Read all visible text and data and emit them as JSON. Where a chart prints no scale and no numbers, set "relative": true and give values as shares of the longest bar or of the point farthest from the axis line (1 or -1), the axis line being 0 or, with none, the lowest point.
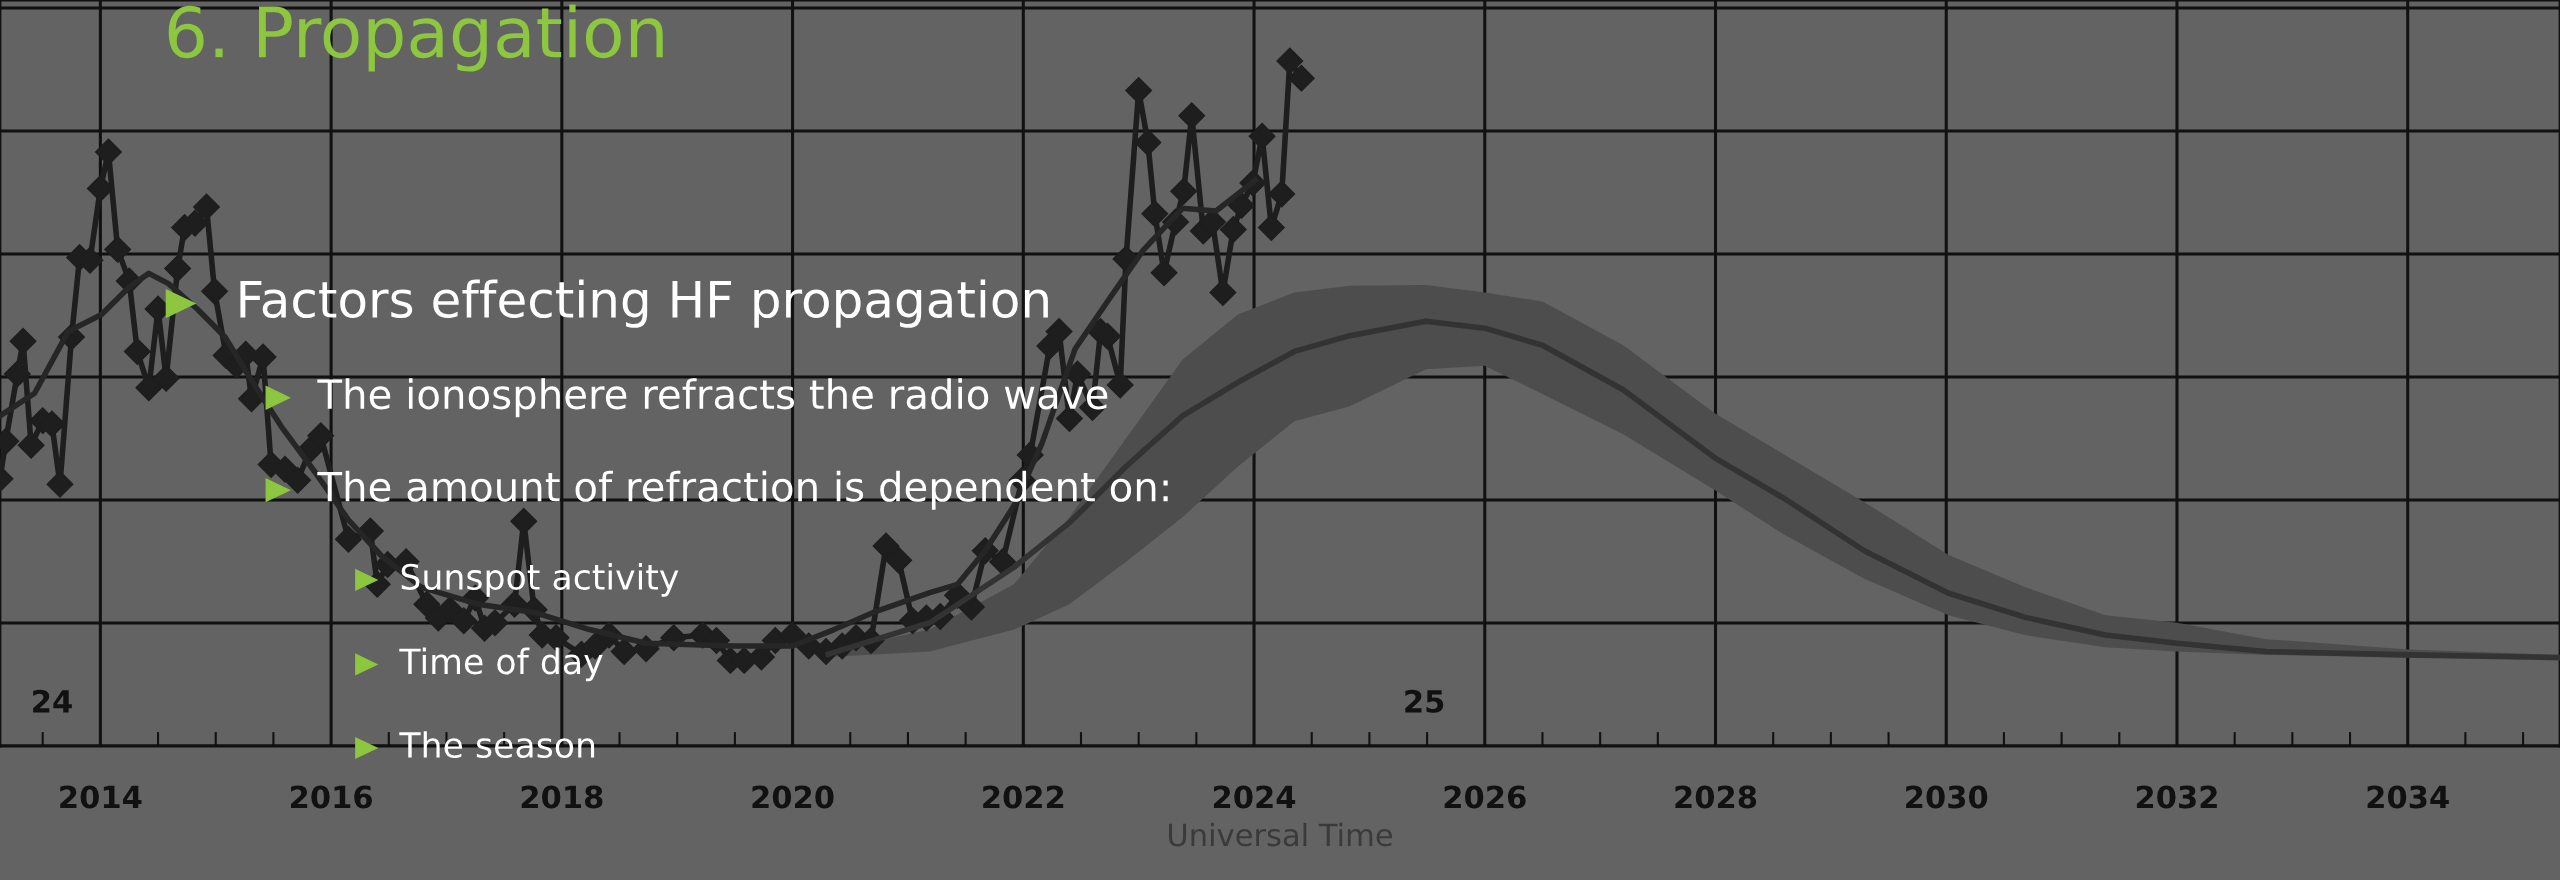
{
  "chart_data": {
    "type": "line",
    "title": "6. Propagation",
    "xlabel": "Universal Time",
    "relative": true,
    "grid": true,
    "xlim": [
      2013.13,
      2035.32
    ],
    "xticks": [
      2014,
      2016,
      2018,
      2020,
      2022,
      2024,
      2026,
      2028,
      2030,
      2032,
      2034
    ],
    "annotations": [
      "24",
      "25",
      "Factors effecting HF propagation",
      "The ionosphere refracts the radio wave",
      "The amount of refraction is dependent on:",
      "Sunspot activity",
      "Time of day",
      "The season"
    ],
    "series": [
      {
        "color": "#1e1e1e",
        "marker": "diamond",
        "x": [
          2013.13,
          2013.18,
          2013.28,
          2013.33,
          2013.4,
          2013.5,
          2013.58,
          2013.65,
          2013.75,
          2013.82,
          2013.91,
          2014.0,
          2014.07,
          2014.15,
          2014.25,
          2014.32,
          2014.42,
          2014.5,
          2014.57,
          2014.67,
          2014.73,
          2014.82,
          2014.92,
          2014.99,
          2015.09,
          2015.18,
          2015.26,
          2015.31,
          2015.41,
          2015.48,
          2015.6,
          2015.71,
          2015.82,
          2015.91,
          2016.15,
          2016.34,
          2016.4,
          2016.49,
          2016.65,
          2016.83,
          2016.93,
          2017.03,
          2017.15,
          2017.25,
          2017.33,
          2017.42,
          2017.59,
          2017.67,
          2017.76,
          2017.83,
          2017.95,
          2018.17,
          2018.29,
          2018.41,
          2018.54,
          2018.73,
          2018.97,
          2019.22,
          2019.34,
          2019.46,
          2019.58,
          2019.73,
          2019.85,
          2020.0,
          2020.14,
          2020.29,
          2020.43,
          2020.55,
          2020.68,
          2020.81,
          2020.92,
          2021.04,
          2021.16,
          2021.28,
          2021.43,
          2021.55,
          2021.67,
          2021.82,
          2021.99,
          2022.06,
          2022.23,
          2022.31,
          2022.4,
          2022.47,
          2022.6,
          2022.67,
          2022.73,
          2022.84,
          2022.89,
          2023.0,
          2023.08,
          2023.14,
          2023.22,
          2023.32,
          2023.39,
          2023.46,
          2023.56,
          2023.64,
          2023.73,
          2023.82,
          2023.89,
          2023.99,
          2024.07,
          2024.15,
          2024.24,
          2024.31,
          2024.41
        ],
        "values": [
          0.39,
          0.445,
          0.543,
          0.591,
          0.439,
          0.475,
          0.47,
          0.382,
          0.597,
          0.713,
          0.709,
          0.814,
          0.867,
          0.725,
          0.679,
          0.576,
          0.523,
          0.638,
          0.537,
          0.697,
          0.757,
          0.763,
          0.787,
          0.664,
          0.57,
          0.556,
          0.572,
          0.507,
          0.568,
          0.411,
          0.404,
          0.388,
          0.433,
          0.453,
          0.302,
          0.314,
          0.236,
          0.265,
          0.269,
          0.207,
          0.187,
          0.199,
          0.183,
          0.216,
          0.172,
          0.18,
          0.207,
          0.328,
          0.199,
          0.162,
          0.158,
          0.134,
          0.146,
          0.162,
          0.138,
          0.142,
          0.158,
          0.162,
          0.154,
          0.125,
          0.125,
          0.13,
          0.154,
          0.162,
          0.146,
          0.138,
          0.146,
          0.158,
          0.154,
          0.292,
          0.271,
          0.183,
          0.187,
          0.189,
          0.22,
          0.203,
          0.285,
          0.269,
          0.388,
          0.425,
          0.584,
          0.605,
          0.478,
          0.543,
          0.494,
          0.605,
          0.598,
          0.527,
          0.711,
          0.957,
          0.881,
          0.777,
          0.691,
          0.765,
          0.81,
          0.92,
          0.752,
          0.765,
          0.662,
          0.754,
          0.789,
          0.822,
          0.89,
          0.757,
          0.806,
          1.0,
          0.975
        ]
      },
      {
        "color": "#262626",
        "marker": "none",
        "x": [
          2013.13,
          2013.43,
          2013.72,
          2014.01,
          2014.25,
          2014.42,
          2014.59,
          2014.84,
          2015.08,
          2015.32,
          2015.57,
          2015.86,
          2016.15,
          2016.44,
          2016.78,
          2017.27,
          2017.76,
          2018.24,
          2018.73,
          2019.48,
          2020.0,
          2020.36,
          2020.7,
          2021.19,
          2021.43,
          2021.67,
          2021.92,
          2022.16,
          2022.45,
          2022.75,
          2023.04,
          2023.38,
          2023.67,
          2023.86,
          2024.01
        ],
        "values": [
          0.482,
          0.515,
          0.605,
          0.63,
          0.67,
          0.69,
          0.675,
          0.638,
          0.597,
          0.531,
          0.466,
          0.4,
          0.33,
          0.277,
          0.232,
          0.207,
          0.195,
          0.17,
          0.15,
          0.146,
          0.146,
          0.17,
          0.195,
          0.224,
          0.236,
          0.285,
          0.351,
          0.441,
          0.58,
          0.654,
          0.724,
          0.785,
          0.781,
          0.806,
          0.826
        ]
      },
      {
        "color": "#333333",
        "marker": "none",
        "x": [
          2020.31,
          2021.19,
          2021.92,
          2022.4,
          2022.89,
          2023.38,
          2023.86,
          2024.35,
          2024.83,
          2025.49,
          2026.0,
          2026.5,
          2027.2,
          2028.0,
          2028.59,
          2029.29,
          2030.02,
          2030.68,
          2031.38,
          2032.0,
          2032.77,
          2034.01,
          2035.32
        ],
        "values": [
          0.134,
          0.18,
          0.261,
          0.326,
          0.408,
          0.482,
          0.531,
          0.576,
          0.599,
          0.62,
          0.61,
          0.585,
          0.52,
          0.42,
          0.362,
          0.285,
          0.223,
          0.188,
          0.162,
          0.15,
          0.138,
          0.133,
          0.129
        ],
        "upper": [
          0.138,
          0.17,
          0.236,
          0.334,
          0.449,
          0.564,
          0.63,
          0.662,
          0.672,
          0.673,
          0.662,
          0.649,
          0.585,
          0.485,
          0.426,
          0.356,
          0.279,
          0.232,
          0.191,
          0.18,
          0.156,
          0.141,
          0.133
        ],
        "lower": [
          0.13,
          0.138,
          0.17,
          0.207,
          0.269,
          0.334,
          0.408,
          0.474,
          0.496,
          0.55,
          0.555,
          0.514,
          0.455,
          0.373,
          0.309,
          0.244,
          0.191,
          0.162,
          0.144,
          0.138,
          0.133,
          0.129,
          0.127
        ]
      }
    ]
  }
}
